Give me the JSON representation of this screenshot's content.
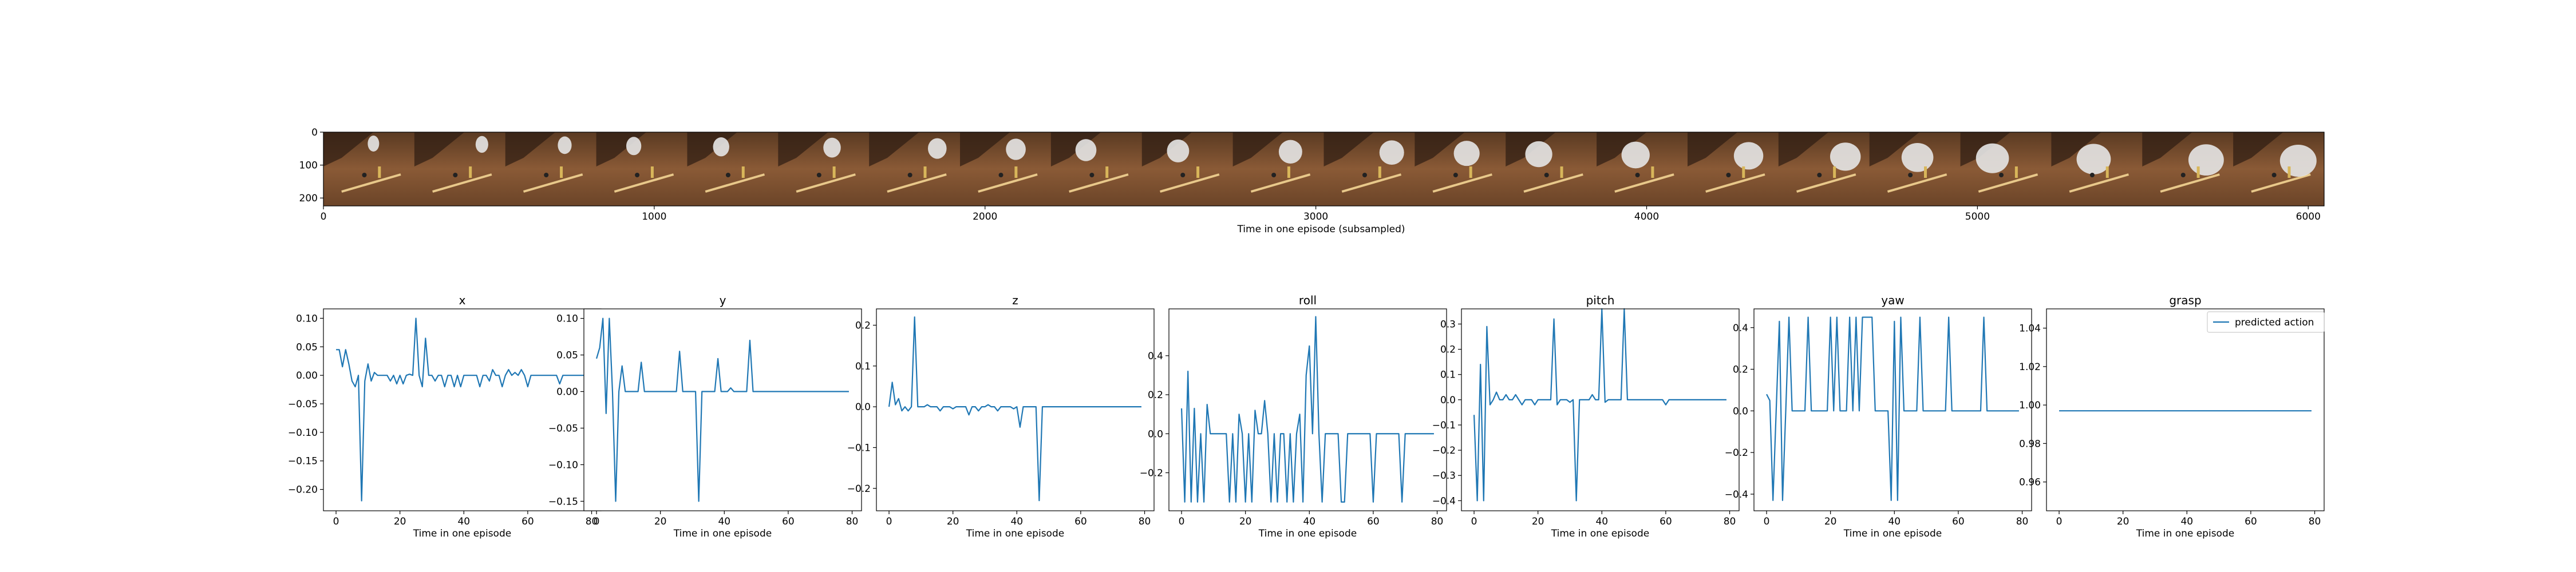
{
  "colors": {
    "line": "#1f77b4",
    "axis": "#000000",
    "background": "#ffffff"
  },
  "strip": {
    "xlabel": "Time in one episode (subsampled)",
    "x_ticks": [
      0,
      1000,
      2000,
      3000,
      4000,
      5000,
      6000
    ],
    "y_ticks": [
      0,
      100,
      200
    ],
    "xlim": [
      0,
      6048
    ],
    "ylim": [
      0,
      224
    ],
    "frame_count": 22
  },
  "legend": {
    "label": "predicted action"
  },
  "chart_data": [
    {
      "type": "line",
      "title": "x",
      "xlabel": "Time in one episode",
      "xlim": [
        -3.95,
        82.95
      ],
      "ylim": [
        -0.2375,
        0.1165
      ],
      "x_ticks": [
        0,
        20,
        40,
        60,
        80
      ],
      "y_ticks": [
        0.1,
        0.05,
        0.0,
        -0.05,
        -0.1,
        -0.15,
        -0.2
      ],
      "y_tick_labels": [
        "0.10",
        "0.05",
        "0.00",
        "−0.05",
        "−0.10",
        "−0.15",
        "−0.20"
      ],
      "x": [
        0,
        1,
        2,
        3,
        4,
        5,
        6,
        7,
        8,
        9,
        10,
        11,
        12,
        13,
        14,
        15,
        16,
        17,
        18,
        19,
        20,
        21,
        22,
        23,
        24,
        25,
        26,
        27,
        28,
        29,
        30,
        31,
        32,
        33,
        34,
        35,
        36,
        37,
        38,
        39,
        40,
        41,
        42,
        43,
        44,
        45,
        46,
        47,
        48,
        49,
        50,
        51,
        52,
        53,
        54,
        55,
        56,
        57,
        58,
        59,
        60,
        61,
        62,
        63,
        64,
        65,
        66,
        67,
        68,
        69,
        70,
        71,
        72,
        73,
        74,
        75,
        76,
        77,
        78,
        79
      ],
      "values": [
        0.045,
        0.045,
        0.015,
        0.045,
        0.02,
        -0.01,
        -0.02,
        0.0,
        -0.22,
        -0.01,
        0.02,
        -0.01,
        0.005,
        0.0,
        0.0,
        0.0,
        0.0,
        -0.01,
        0.0,
        -0.015,
        0.0,
        -0.015,
        0.0,
        0.002,
        0.0,
        0.1,
        0.0,
        -0.02,
        0.065,
        0.0,
        0.0,
        -0.01,
        0.0,
        0.0,
        -0.02,
        0.0,
        0.0,
        -0.02,
        0.0,
        -0.02,
        0.0,
        0.0,
        0.0,
        0.0,
        0.0,
        -0.02,
        0.0,
        0.0,
        -0.01,
        0.01,
        0.0,
        0.0,
        -0.02,
        0.0,
        0.01,
        0.0,
        0.005,
        0.0,
        0.01,
        0.0,
        -0.02,
        0.0,
        0.0,
        0.0,
        0.0,
        0.0,
        0.0,
        0.0,
        0.0,
        0.0,
        -0.015,
        0.0,
        0.0,
        0.0,
        0.0,
        0.0,
        0.0,
        0.0,
        0.0,
        0.0
      ]
    },
    {
      "type": "line",
      "title": "y",
      "xlabel": "Time in one episode",
      "xlim": [
        -3.95,
        82.95
      ],
      "ylim": [
        -0.163,
        0.113
      ],
      "x_ticks": [
        0,
        20,
        40,
        60,
        80
      ],
      "y_ticks": [
        0.1,
        0.05,
        0.0,
        -0.05,
        -0.1,
        -0.15
      ],
      "y_tick_labels": [
        "0.10",
        "0.05",
        "0.00",
        "−0.05",
        "−0.10",
        "−0.15"
      ],
      "x": [
        0,
        1,
        2,
        3,
        4,
        5,
        6,
        7,
        8,
        9,
        10,
        11,
        12,
        13,
        14,
        15,
        16,
        17,
        18,
        19,
        20,
        21,
        22,
        23,
        24,
        25,
        26,
        27,
        28,
        29,
        30,
        31,
        32,
        33,
        34,
        35,
        36,
        37,
        38,
        39,
        40,
        41,
        42,
        43,
        44,
        45,
        46,
        47,
        48,
        49,
        50,
        51,
        52,
        53,
        54,
        55,
        56,
        57,
        58,
        59,
        60,
        61,
        62,
        63,
        64,
        65,
        66,
        67,
        68,
        69,
        70,
        71,
        72,
        73,
        74,
        75,
        76,
        77,
        78,
        79
      ],
      "values": [
        0.045,
        0.06,
        0.1,
        -0.03,
        0.1,
        0.0,
        -0.15,
        0.0,
        0.035,
        0.0,
        0.0,
        0.0,
        0.0,
        0.0,
        0.04,
        0.0,
        0.0,
        0.0,
        0.0,
        0.0,
        0.0,
        0.0,
        0.0,
        0.0,
        0.0,
        0.0,
        0.055,
        0.0,
        0.0,
        0.0,
        0.0,
        0.0,
        -0.15,
        0.0,
        0.0,
        0.0,
        0.0,
        0.0,
        0.045,
        0.0,
        0.0,
        0.0,
        0.005,
        0.0,
        0.0,
        0.0,
        0.0,
        0.0,
        0.07,
        0.0,
        0.0,
        0.0,
        0.0,
        0.0,
        0.0,
        0.0,
        0.0,
        0.0,
        0.0,
        0.0,
        0.0,
        0.0,
        0.0,
        0.0,
        0.0,
        0.0,
        0.0,
        0.0,
        0.0,
        0.0,
        0.0,
        0.0,
        0.0,
        0.0,
        0.0,
        0.0,
        0.0,
        0.0,
        0.0,
        0.0
      ]
    },
    {
      "type": "line",
      "title": "z",
      "xlabel": "Time in one episode",
      "xlim": [
        -3.95,
        82.95
      ],
      "ylim": [
        -0.255,
        0.24
      ],
      "x_ticks": [
        0,
        20,
        40,
        60,
        80
      ],
      "y_ticks": [
        0.2,
        0.1,
        0.0,
        -0.1,
        -0.2
      ],
      "y_tick_labels": [
        "0.2",
        "0.1",
        "0.0",
        "−0.1",
        "−0.2"
      ],
      "x": [
        0,
        1,
        2,
        3,
        4,
        5,
        6,
        7,
        8,
        9,
        10,
        11,
        12,
        13,
        14,
        15,
        16,
        17,
        18,
        19,
        20,
        21,
        22,
        23,
        24,
        25,
        26,
        27,
        28,
        29,
        30,
        31,
        32,
        33,
        34,
        35,
        36,
        37,
        38,
        39,
        40,
        41,
        42,
        43,
        44,
        45,
        46,
        47,
        48,
        49,
        50,
        51,
        52,
        53,
        54,
        55,
        56,
        57,
        58,
        59,
        60,
        61,
        62,
        63,
        64,
        65,
        66,
        67,
        68,
        69,
        70,
        71,
        72,
        73,
        74,
        75,
        76,
        77,
        78,
        79
      ],
      "values": [
        0.0,
        0.06,
        0.005,
        0.02,
        -0.01,
        0.0,
        -0.01,
        0.0,
        0.22,
        0.0,
        0.0,
        0.0,
        0.005,
        0.0,
        0.0,
        0.0,
        -0.01,
        0.0,
        0.0,
        0.0,
        -0.005,
        0.0,
        0.0,
        0.0,
        0.0,
        -0.02,
        0.0,
        0.0,
        -0.01,
        0.0,
        0.0,
        0.005,
        0.0,
        0.0,
        -0.01,
        0.0,
        0.0,
        0.0,
        0.0,
        -0.005,
        0.0,
        -0.05,
        0.0,
        0.0,
        0.0,
        0.0,
        0.0,
        -0.23,
        0.0,
        0.0,
        0.0,
        0.0,
        0.0,
        0.0,
        0.0,
        0.0,
        0.0,
        0.0,
        0.0,
        0.0,
        0.0,
        0.0,
        0.0,
        0.0,
        0.0,
        0.0,
        0.0,
        0.0,
        0.0,
        0.0,
        0.0,
        0.0,
        0.0,
        0.0,
        0.0,
        0.0,
        0.0,
        0.0,
        0.0,
        0.0
      ]
    },
    {
      "type": "line",
      "title": "roll",
      "xlabel": "Time in one episode",
      "xlim": [
        -3.95,
        82.95
      ],
      "ylim": [
        -0.395,
        0.64
      ],
      "x_ticks": [
        0,
        20,
        40,
        60,
        80
      ],
      "y_ticks": [
        0.4,
        0.2,
        0.0,
        -0.2
      ],
      "y_tick_labels": [
        "0.4",
        "0.2",
        "0.0",
        "−0.2"
      ],
      "x": [
        0,
        1,
        2,
        3,
        4,
        5,
        6,
        7,
        8,
        9,
        10,
        11,
        12,
        13,
        14,
        15,
        16,
        17,
        18,
        19,
        20,
        21,
        22,
        23,
        24,
        25,
        26,
        27,
        28,
        29,
        30,
        31,
        32,
        33,
        34,
        35,
        36,
        37,
        38,
        39,
        40,
        41,
        42,
        43,
        44,
        45,
        46,
        47,
        48,
        49,
        50,
        51,
        52,
        53,
        54,
        55,
        56,
        57,
        58,
        59,
        60,
        61,
        62,
        63,
        64,
        65,
        66,
        67,
        68,
        69,
        70,
        71,
        72,
        73,
        74,
        75,
        76,
        77,
        78,
        79
      ],
      "values": [
        0.13,
        -0.35,
        0.32,
        -0.35,
        0.13,
        -0.35,
        0.0,
        -0.35,
        0.15,
        0.0,
        0.0,
        0.0,
        0.0,
        0.0,
        0.0,
        -0.35,
        0.0,
        -0.35,
        0.1,
        0.0,
        -0.35,
        0.0,
        -0.35,
        0.12,
        0.0,
        0.0,
        0.17,
        0.0,
        -0.35,
        0.0,
        -0.35,
        0.0,
        0.0,
        -0.35,
        0.0,
        -0.35,
        0.0,
        0.1,
        -0.35,
        0.3,
        0.45,
        0.0,
        0.6,
        0.0,
        -0.35,
        0.0,
        0.0,
        0.0,
        0.0,
        0.0,
        -0.35,
        -0.35,
        0.0,
        0.0,
        0.0,
        0.0,
        0.0,
        0.0,
        0.0,
        0.0,
        -0.35,
        0.0,
        0.0,
        0.0,
        0.0,
        0.0,
        0.0,
        0.0,
        0.0,
        -0.35,
        0.0,
        0.0,
        0.0,
        0.0,
        0.0,
        0.0,
        0.0,
        0.0,
        0.0,
        0.0
      ]
    },
    {
      "type": "line",
      "title": "pitch",
      "xlabel": "Time in one episode",
      "xlim": [
        -3.95,
        82.95
      ],
      "ylim": [
        -0.44,
        0.36
      ],
      "x_ticks": [
        0,
        20,
        40,
        60,
        80
      ],
      "y_ticks": [
        0.3,
        0.2,
        0.1,
        0.0,
        -0.1,
        -0.2,
        -0.3,
        -0.4
      ],
      "y_tick_labels": [
        "0.3",
        "0.2",
        "0.1",
        "0.0",
        "−0.1",
        "−0.2",
        "−0.3",
        "−0.4"
      ],
      "x": [
        0,
        1,
        2,
        3,
        4,
        5,
        6,
        7,
        8,
        9,
        10,
        11,
        12,
        13,
        14,
        15,
        16,
        17,
        18,
        19,
        20,
        21,
        22,
        23,
        24,
        25,
        26,
        27,
        28,
        29,
        30,
        31,
        32,
        33,
        34,
        35,
        36,
        37,
        38,
        39,
        40,
        41,
        42,
        43,
        44,
        45,
        46,
        47,
        48,
        49,
        50,
        51,
        52,
        53,
        54,
        55,
        56,
        57,
        58,
        59,
        60,
        61,
        62,
        63,
        64,
        65,
        66,
        67,
        68,
        69,
        70,
        71,
        72,
        73,
        74,
        75,
        76,
        77,
        78,
        79
      ],
      "values": [
        -0.06,
        -0.4,
        0.14,
        -0.4,
        0.29,
        -0.02,
        0.0,
        0.03,
        0.0,
        0.0,
        0.02,
        0.0,
        0.0,
        0.02,
        0.0,
        -0.02,
        0.0,
        0.0,
        0.0,
        -0.02,
        0.0,
        0.0,
        0.0,
        0.0,
        0.0,
        0.32,
        -0.02,
        0.0,
        0.0,
        0.0,
        -0.01,
        0.0,
        -0.4,
        0.0,
        0.0,
        0.0,
        0.0,
        0.02,
        0.0,
        0.0,
        0.36,
        -0.01,
        0.0,
        0.0,
        0.0,
        0.0,
        0.0,
        0.36,
        0.0,
        0.0,
        0.0,
        0.0,
        0.0,
        0.0,
        0.0,
        0.0,
        0.0,
        0.0,
        0.0,
        0.0,
        -0.02,
        0.0,
        0.0,
        0.0,
        0.0,
        0.0,
        0.0,
        0.0,
        0.0,
        0.0,
        0.0,
        0.0,
        0.0,
        0.0,
        0.0,
        0.0,
        0.0,
        0.0,
        0.0,
        0.0
      ]
    },
    {
      "type": "line",
      "title": "yaw",
      "xlabel": "Time in one episode",
      "xlim": [
        -3.95,
        82.95
      ],
      "ylim": [
        -0.48,
        0.49
      ],
      "x_ticks": [
        0,
        20,
        40,
        60,
        80
      ],
      "y_ticks": [
        0.4,
        0.2,
        0.0,
        -0.2,
        -0.4
      ],
      "y_tick_labels": [
        "0.4",
        "0.2",
        "0.0",
        "−0.2",
        "−0.4"
      ],
      "x": [
        0,
        1,
        2,
        3,
        4,
        5,
        6,
        7,
        8,
        9,
        10,
        11,
        12,
        13,
        14,
        15,
        16,
        17,
        18,
        19,
        20,
        21,
        22,
        23,
        24,
        25,
        26,
        27,
        28,
        29,
        30,
        31,
        32,
        33,
        34,
        35,
        36,
        37,
        38,
        39,
        40,
        41,
        42,
        43,
        44,
        45,
        46,
        47,
        48,
        49,
        50,
        51,
        52,
        53,
        54,
        55,
        56,
        57,
        58,
        59,
        60,
        61,
        62,
        63,
        64,
        65,
        66,
        67,
        68,
        69,
        70,
        71,
        72,
        73,
        74,
        75,
        76,
        77,
        78,
        79
      ],
      "values": [
        0.08,
        0.05,
        -0.43,
        0.0,
        0.43,
        -0.43,
        0.0,
        0.45,
        0.0,
        0.0,
        0.0,
        0.0,
        0.0,
        0.45,
        0.0,
        0.0,
        0.0,
        0.0,
        0.0,
        0.0,
        0.45,
        0.0,
        0.45,
        0.0,
        0.0,
        0.0,
        0.45,
        0.0,
        0.45,
        0.0,
        0.45,
        0.45,
        0.45,
        0.45,
        0.0,
        0.0,
        0.0,
        0.0,
        0.0,
        -0.43,
        0.43,
        -0.43,
        0.45,
        0.0,
        0.0,
        0.0,
        0.0,
        0.0,
        0.45,
        0.0,
        0.0,
        0.0,
        0.0,
        0.0,
        0.0,
        0.0,
        0.0,
        0.45,
        0.0,
        0.0,
        0.0,
        0.0,
        0.0,
        0.0,
        0.0,
        0.0,
        0.0,
        0.0,
        0.45,
        0.0,
        0.0,
        0.0,
        0.0,
        0.0,
        0.0,
        0.0,
        0.0,
        0.0,
        0.0,
        0.0
      ]
    },
    {
      "type": "line",
      "title": "grasp",
      "xlabel": "Time in one episode",
      "xlim": [
        -3.95,
        82.95
      ],
      "ylim": [
        0.945,
        1.05
      ],
      "x_ticks": [
        0,
        20,
        40,
        60,
        80
      ],
      "y_ticks": [
        1.04,
        1.02,
        1.0,
        0.98,
        0.96
      ],
      "y_tick_labels": [
        "1.04",
        "1.02",
        "1.00",
        "0.98",
        "0.96"
      ],
      "legend": "top-right",
      "x": [
        0,
        79
      ],
      "values": [
        0.997,
        0.997
      ]
    }
  ]
}
